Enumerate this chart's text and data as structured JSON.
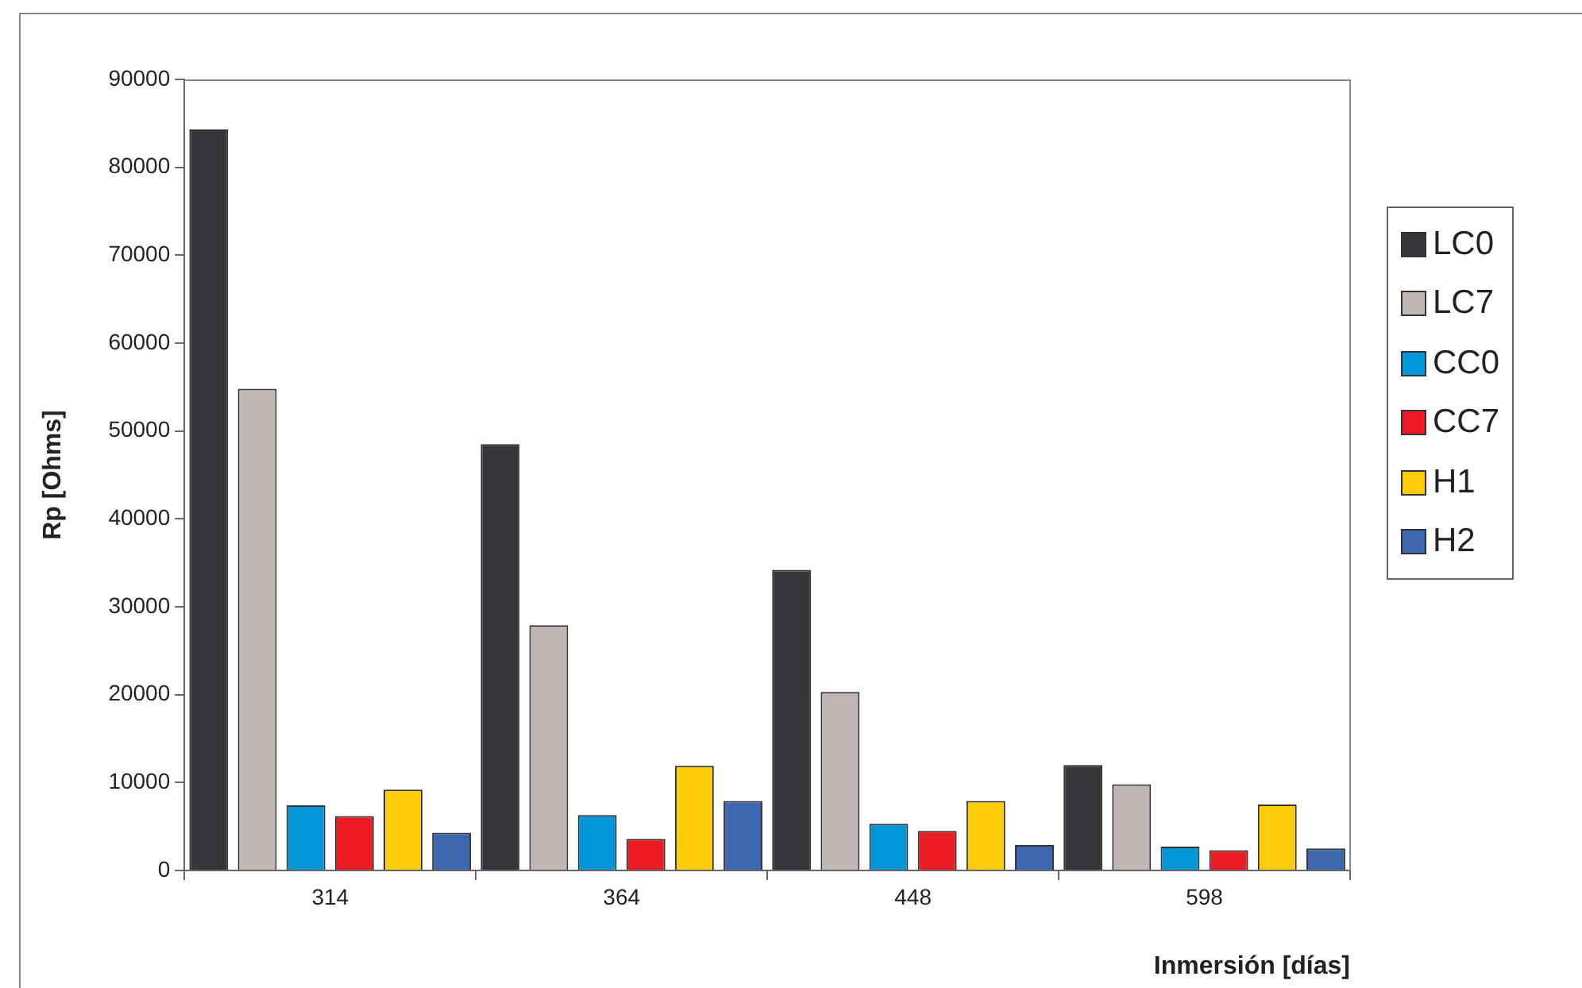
{
  "chart_data": {
    "type": "bar",
    "xlabel": "Inmersión [días]",
    "ylabel": "Rp [Ohms]",
    "categories": [
      "314",
      "364",
      "448",
      "598"
    ],
    "series": [
      {
        "name": "LC0",
        "color": "#36363b",
        "values": [
          84300,
          48500,
          34200,
          12000
        ]
      },
      {
        "name": "LC7",
        "color": "#c0b6b3",
        "values": [
          54800,
          27900,
          20300,
          9800
        ]
      },
      {
        "name": "CC0",
        "color": "#0096d8",
        "values": [
          7400,
          6300,
          5300,
          2700
        ]
      },
      {
        "name": "CC7",
        "color": "#ec1c24",
        "values": [
          6200,
          3600,
          4500,
          2300
        ]
      },
      {
        "name": "H1",
        "color": "#fccc08",
        "values": [
          9200,
          11900,
          7900,
          7500
        ]
      },
      {
        "name": "H2",
        "color": "#3d68b0",
        "values": [
          4300,
          7900,
          2900,
          2500
        ]
      }
    ],
    "ylim": [
      0,
      90000
    ],
    "yticks": [
      0,
      10000,
      20000,
      30000,
      40000,
      50000,
      60000,
      70000,
      80000,
      90000
    ],
    "grid": false,
    "legend": "right"
  }
}
